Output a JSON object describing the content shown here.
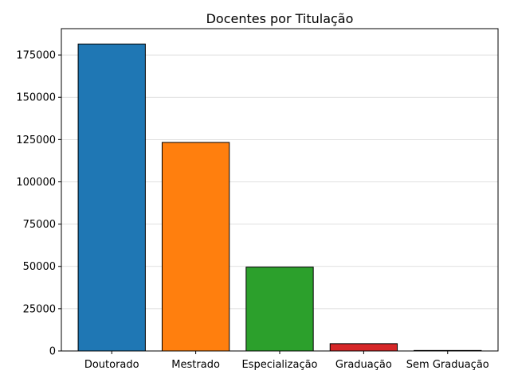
{
  "chart_data": {
    "type": "bar",
    "title": "Docentes por Titulação",
    "xlabel": "",
    "ylabel": "",
    "categories": [
      "Doutorado",
      "Mestrado",
      "Especialização",
      "Graduação",
      "Sem Graduação"
    ],
    "values": [
      181500,
      123300,
      49600,
      4300,
      300
    ],
    "colors": [
      "#1f77b4",
      "#ff7f0e",
      "#2ca02c",
      "#d62728",
      "#9467bd"
    ],
    "edge_color": "#000000",
    "ylim": [
      0,
      190575
    ],
    "yticks": [
      0,
      25000,
      50000,
      75000,
      100000,
      125000,
      150000,
      175000
    ],
    "grid": "y",
    "legend": "none"
  }
}
